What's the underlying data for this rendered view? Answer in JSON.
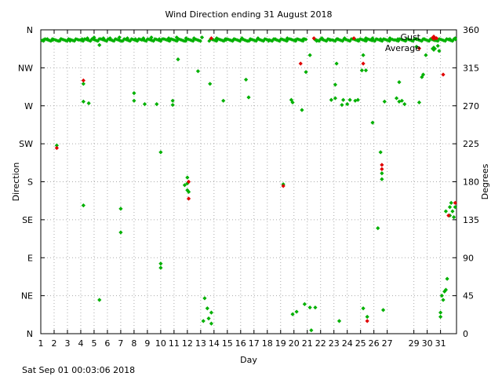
{
  "chart_data": {
    "type": "scatter",
    "title": "Wind Direction ending 31 August 2018",
    "xlabel": "Day",
    "ylabel_left": "Direction",
    "ylabel_right": "Degrees",
    "footer": "Sat Sep 01 00:03:06 2018",
    "xlim": [
      1,
      32.2
    ],
    "ylim": [
      0,
      360
    ],
    "x_ticks": [
      1,
      2,
      3,
      4,
      5,
      6,
      7,
      8,
      9,
      10,
      11,
      12,
      13,
      14,
      15,
      16,
      17,
      18,
      19,
      20,
      21,
      22,
      23,
      24,
      25,
      26,
      27,
      29,
      30,
      31
    ],
    "y_ticks_left": [
      {
        "v": 0,
        "label": "N"
      },
      {
        "v": 45,
        "label": "NE"
      },
      {
        "v": 90,
        "label": "E"
      },
      {
        "v": 135,
        "label": "SE"
      },
      {
        "v": 180,
        "label": "S"
      },
      {
        "v": 225,
        "label": "SW"
      },
      {
        "v": 270,
        "label": "W"
      },
      {
        "v": 315,
        "label": "NW"
      },
      {
        "v": 360,
        "label": "N"
      }
    ],
    "y_ticks_right": [
      {
        "v": 0,
        "label": "0"
      },
      {
        "v": 45,
        "label": "45"
      },
      {
        "v": 90,
        "label": "90"
      },
      {
        "v": 135,
        "label": "135"
      },
      {
        "v": 180,
        "label": "180"
      },
      {
        "v": 225,
        "label": "225"
      },
      {
        "v": 270,
        "label": "270"
      },
      {
        "v": 315,
        "label": "315"
      },
      {
        "v": 360,
        "label": "360"
      }
    ],
    "grid": true,
    "legend_position": "top-right",
    "series": [
      {
        "name": "Gust",
        "color": "#e00000",
        "points": [
          [
            2.2,
            220
          ],
          [
            4.2,
            300
          ],
          [
            12.1,
            180
          ],
          [
            12.1,
            160
          ],
          [
            13.8,
            350
          ],
          [
            19.2,
            175
          ],
          [
            20.5,
            320
          ],
          [
            25.2,
            320
          ],
          [
            25.5,
            15
          ],
          [
            26.6,
            200
          ],
          [
            26.6,
            195
          ],
          [
            30.7,
            350
          ],
          [
            31.2,
            307
          ],
          [
            31.6,
            140
          ],
          [
            32.1,
            155
          ],
          [
            24.5,
            350
          ],
          [
            29.4,
            338
          ],
          [
            21.5,
            350
          ]
        ]
      },
      {
        "name": "Average",
        "color": "#00b000",
        "points": [
          [
            1.2,
            348
          ],
          [
            1.5,
            349
          ],
          [
            1.9,
            348
          ],
          [
            2.5,
            349
          ],
          [
            3.2,
            347
          ],
          [
            4.1,
            349
          ],
          [
            4.5,
            350
          ],
          [
            5.0,
            351
          ],
          [
            5.7,
            350
          ],
          [
            6.2,
            350
          ],
          [
            6.9,
            351
          ],
          [
            7.5,
            350
          ],
          [
            8.1,
            349
          ],
          [
            8.7,
            350
          ],
          [
            9.3,
            351
          ],
          [
            9.9,
            349
          ],
          [
            10.6,
            350
          ],
          [
            11.2,
            351
          ],
          [
            11.9,
            350
          ],
          [
            12.5,
            350
          ],
          [
            13.1,
            351
          ],
          [
            14.2,
            350
          ],
          [
            14.9,
            348
          ],
          [
            15.5,
            349
          ],
          [
            16.1,
            350
          ],
          [
            16.7,
            348
          ],
          [
            17.3,
            350
          ],
          [
            18.1,
            347
          ],
          [
            18.6,
            349
          ],
          [
            19.5,
            350
          ],
          [
            20.1,
            348
          ],
          [
            20.7,
            349
          ],
          [
            21.7,
            347
          ],
          [
            22.1,
            350
          ],
          [
            22.7,
            348
          ],
          [
            23.3,
            349
          ],
          [
            23.8,
            350
          ],
          [
            24.8,
            348
          ],
          [
            25.4,
            350
          ],
          [
            25.9,
            350
          ],
          [
            26.5,
            349
          ],
          [
            27.2,
            350
          ],
          [
            27.8,
            349
          ],
          [
            29.2,
            349
          ],
          [
            29.8,
            349
          ],
          [
            30.4,
            349
          ],
          [
            31.7,
            349
          ],
          [
            32.1,
            350
          ],
          [
            2.2,
            223
          ],
          [
            4.2,
            296
          ],
          [
            4.2,
            275
          ],
          [
            4.6,
            273
          ],
          [
            5.4,
            342
          ],
          [
            4.2,
            152
          ],
          [
            5.4,
            40
          ],
          [
            7.0,
            148
          ],
          [
            7.0,
            120
          ],
          [
            8.0,
            285
          ],
          [
            8.0,
            276
          ],
          [
            8.8,
            272
          ],
          [
            9.7,
            272
          ],
          [
            10.0,
            215
          ],
          [
            10.0,
            83
          ],
          [
            10.0,
            78
          ],
          [
            10.9,
            271
          ],
          [
            10.9,
            276
          ],
          [
            11.3,
            325
          ],
          [
            12.0,
            185
          ],
          [
            12.0,
            178
          ],
          [
            12.0,
            170
          ],
          [
            11.8,
            176
          ],
          [
            12.1,
            168
          ],
          [
            12.8,
            311
          ],
          [
            13.2,
            15
          ],
          [
            13.3,
            42
          ],
          [
            13.5,
            30
          ],
          [
            13.6,
            18
          ],
          [
            13.8,
            25
          ],
          [
            13.8,
            12
          ],
          [
            13.7,
            296
          ],
          [
            14.7,
            276
          ],
          [
            16.4,
            301
          ],
          [
            16.6,
            280
          ],
          [
            19.2,
            177
          ],
          [
            19.8,
            277
          ],
          [
            19.9,
            274
          ],
          [
            19.9,
            23
          ],
          [
            20.2,
            26
          ],
          [
            20.6,
            265
          ],
          [
            20.9,
            310
          ],
          [
            20.8,
            35
          ],
          [
            21.2,
            31
          ],
          [
            21.6,
            31
          ],
          [
            21.2,
            330
          ],
          [
            21.3,
            4
          ],
          [
            22.8,
            277
          ],
          [
            23.1,
            279
          ],
          [
            23.1,
            295
          ],
          [
            23.2,
            320
          ],
          [
            23.4,
            15
          ],
          [
            23.6,
            271
          ],
          [
            23.7,
            277
          ],
          [
            24.0,
            272
          ],
          [
            24.2,
            277
          ],
          [
            24.6,
            276
          ],
          [
            24.8,
            277
          ],
          [
            25.1,
            312
          ],
          [
            25.2,
            330
          ],
          [
            25.2,
            30
          ],
          [
            25.4,
            312
          ],
          [
            25.5,
            20
          ],
          [
            25.9,
            250
          ],
          [
            26.3,
            125
          ],
          [
            26.5,
            215
          ],
          [
            26.6,
            190
          ],
          [
            26.6,
            183
          ],
          [
            26.7,
            28
          ],
          [
            26.8,
            275
          ],
          [
            27.7,
            279
          ],
          [
            27.9,
            275
          ],
          [
            28.1,
            276
          ],
          [
            28.3,
            272
          ],
          [
            27.9,
            298
          ],
          [
            29.2,
            340
          ],
          [
            29.4,
            274
          ],
          [
            29.6,
            304
          ],
          [
            29.7,
            307
          ],
          [
            29.9,
            330
          ],
          [
            30.8,
            341
          ],
          [
            30.9,
            335
          ],
          [
            31.0,
            20
          ],
          [
            31.0,
            25
          ],
          [
            31.2,
            40
          ],
          [
            31.3,
            50
          ],
          [
            31.4,
            52
          ],
          [
            31.4,
            145
          ],
          [
            31.7,
            150
          ],
          [
            31.7,
            140
          ],
          [
            31.8,
            155
          ],
          [
            31.9,
            145
          ],
          [
            32.0,
            138
          ],
          [
            32.1,
            150
          ],
          [
            31.5,
            65
          ],
          [
            31.1,
            45
          ]
        ]
      }
    ]
  }
}
